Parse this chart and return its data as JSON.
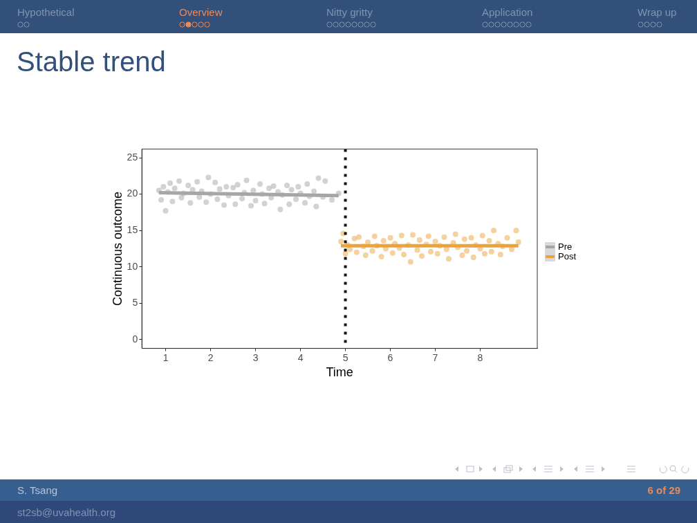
{
  "chart_data": {
    "type": "scatter",
    "title": "Stable trend",
    "xlabel": "Time",
    "ylabel": "Continuous outcome",
    "xlim": [
      0.47,
      9.27
    ],
    "ylim": [
      -1.2,
      26.2
    ],
    "xticks": [
      1,
      2,
      3,
      4,
      5,
      6,
      7,
      8
    ],
    "yticks": [
      0,
      5,
      10,
      15,
      20,
      25
    ],
    "grid": false,
    "legend": "right",
    "marker": "circle",
    "series": [
      {
        "name": "Pre",
        "color": "#a6a6a6",
        "x": [
          0.85,
          0.9,
          0.95,
          1.0,
          1.05,
          1.1,
          1.15,
          1.2,
          1.3,
          1.35,
          1.4,
          1.5,
          1.55,
          1.6,
          1.7,
          1.75,
          1.8,
          1.9,
          1.95,
          2.0,
          2.1,
          2.15,
          2.2,
          2.3,
          2.35,
          2.4,
          2.5,
          2.55,
          2.6,
          2.7,
          2.75,
          2.8,
          2.9,
          2.95,
          3.0,
          3.1,
          3.15,
          3.2,
          3.3,
          3.35,
          3.4,
          3.5,
          3.55,
          3.6,
          3.7,
          3.75,
          3.8,
          3.9,
          3.95,
          4.0,
          4.1,
          4.15,
          4.2,
          4.3,
          4.35,
          4.4,
          4.5,
          4.55,
          4.7,
          4.85
        ],
        "values": [
          20.5,
          19.2,
          21.0,
          17.7,
          20.3,
          21.5,
          19.0,
          20.8,
          21.8,
          19.5,
          20.1,
          21.2,
          18.8,
          20.6,
          21.7,
          19.6,
          20.4,
          18.9,
          22.3,
          20.0,
          21.6,
          19.3,
          20.7,
          18.5,
          21.0,
          19.8,
          20.9,
          18.6,
          21.3,
          19.4,
          20.2,
          21.9,
          18.4,
          20.5,
          19.1,
          21.4,
          20.0,
          18.7,
          20.8,
          19.5,
          21.1,
          20.3,
          17.9,
          19.9,
          21.2,
          18.6,
          20.6,
          19.3,
          21.0,
          20.1,
          18.8,
          21.4,
          19.7,
          20.4,
          18.3,
          22.2,
          19.6,
          21.8,
          19.2,
          20.1
        ]
      },
      {
        "name": "Post",
        "color": "#eba43c",
        "x": [
          4.9,
          4.95,
          5.0,
          5.05,
          5.1,
          5.2,
          5.25,
          5.3,
          5.4,
          5.45,
          5.5,
          5.6,
          5.65,
          5.7,
          5.8,
          5.85,
          5.9,
          6.0,
          6.05,
          6.1,
          6.2,
          6.25,
          6.3,
          6.4,
          6.45,
          6.5,
          6.6,
          6.65,
          6.7,
          6.8,
          6.85,
          6.9,
          7.0,
          7.05,
          7.1,
          7.2,
          7.25,
          7.3,
          7.4,
          7.45,
          7.5,
          7.6,
          7.65,
          7.7,
          7.8,
          7.85,
          7.9,
          8.0,
          8.05,
          8.1,
          8.2,
          8.25,
          8.3,
          8.4,
          8.45,
          8.5,
          8.6,
          8.7,
          8.8,
          8.85
        ],
        "values": [
          13.5,
          14.6,
          11.8,
          13.0,
          12.4,
          13.9,
          12.0,
          14.1,
          12.8,
          11.6,
          13.4,
          12.2,
          14.2,
          12.9,
          11.4,
          13.6,
          12.5,
          14.0,
          11.9,
          13.2,
          12.6,
          14.3,
          11.7,
          13.0,
          10.7,
          14.4,
          12.3,
          13.7,
          11.5,
          13.1,
          14.2,
          12.1,
          13.5,
          11.8,
          12.9,
          14.1,
          12.4,
          11.1,
          13.3,
          14.5,
          12.7,
          11.6,
          13.8,
          12.2,
          14.0,
          11.3,
          13.0,
          12.5,
          14.3,
          11.8,
          13.6,
          12.1,
          15.0,
          13.2,
          11.7,
          12.8,
          14.0,
          12.4,
          15.0,
          13.4
        ]
      },
      {
        "type": "line",
        "marker": "none",
        "color": "#a6a6a6",
        "x": [
          0.85,
          4.85
        ],
        "values": [
          20.2,
          19.8
        ]
      },
      {
        "type": "line",
        "marker": "none",
        "color": "#eba43c",
        "x": [
          4.9,
          8.85
        ],
        "values": [
          12.9,
          12.9
        ]
      }
    ],
    "ref_lines": [
      {
        "axis": "x",
        "value": 5,
        "color": "#111111",
        "line_style": "dotted"
      }
    ],
    "annotations": [
      "Hypothetical",
      "Overview",
      "Nitty gritty",
      "Application",
      "Wrap up",
      "S. Tsang",
      "6 of 29",
      "st2sb@uvahealth.org"
    ]
  }
}
